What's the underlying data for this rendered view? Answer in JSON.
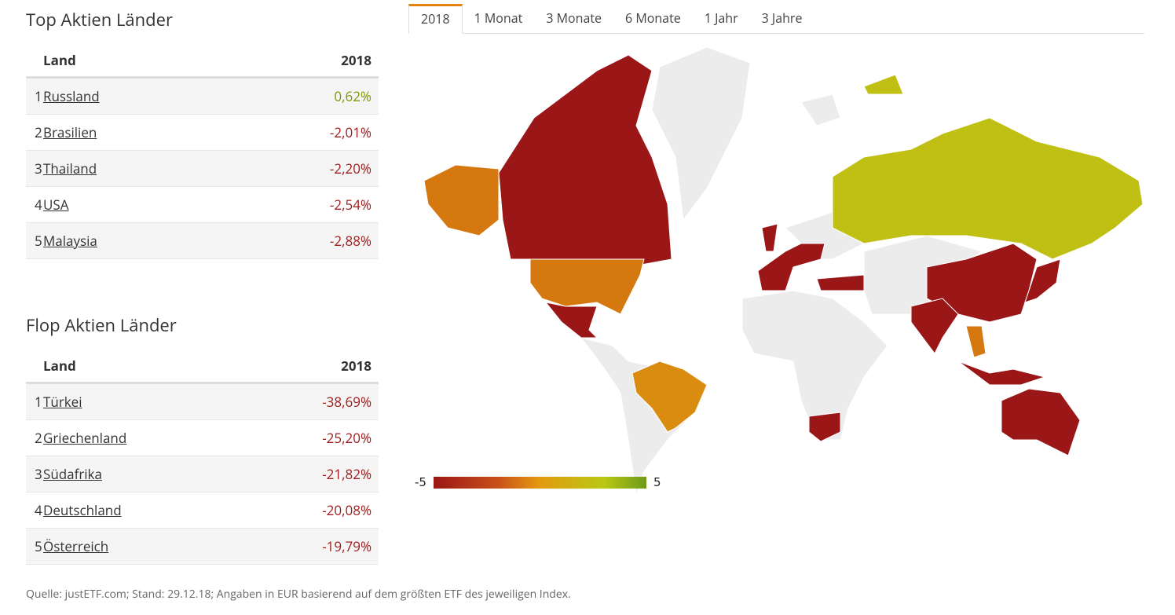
{
  "tabs": [
    "2018",
    "1 Monat",
    "3 Monate",
    "6 Monate",
    "1 Jahr",
    "3 Jahre"
  ],
  "top": {
    "title": "Top Aktien Länder",
    "header": [
      "Land",
      "2018"
    ],
    "rows": [
      [
        "1",
        "Russland",
        "0,62%"
      ],
      [
        "2",
        "Brasilien",
        "-2,01%"
      ],
      [
        "3",
        "Thailand",
        "-2,20%"
      ],
      [
        "4",
        "USA",
        "-2,54%"
      ],
      [
        "5",
        "Malaysia",
        "-2,88%"
      ]
    ]
  },
  "flop": {
    "title": "Flop Aktien Länder",
    "header": [
      "Land",
      "2018"
    ],
    "rows": [
      [
        "1",
        "Türkei",
        "-38,69%"
      ],
      [
        "2",
        "Griechenland",
        "-25,20%"
      ],
      [
        "3",
        "Südafrika",
        "-21,82%"
      ],
      [
        "4",
        "Deutschland",
        "-20,08%"
      ],
      [
        "5",
        "Österreich",
        "-19,79%"
      ]
    ]
  },
  "legend": {
    "min": -5,
    "max": 5
  },
  "footnote": "Quelle: justETF.com; Stand: 29.12.18; Angaben in EUR basierend auf dem größten ETF des jeweiligen Index."
}
